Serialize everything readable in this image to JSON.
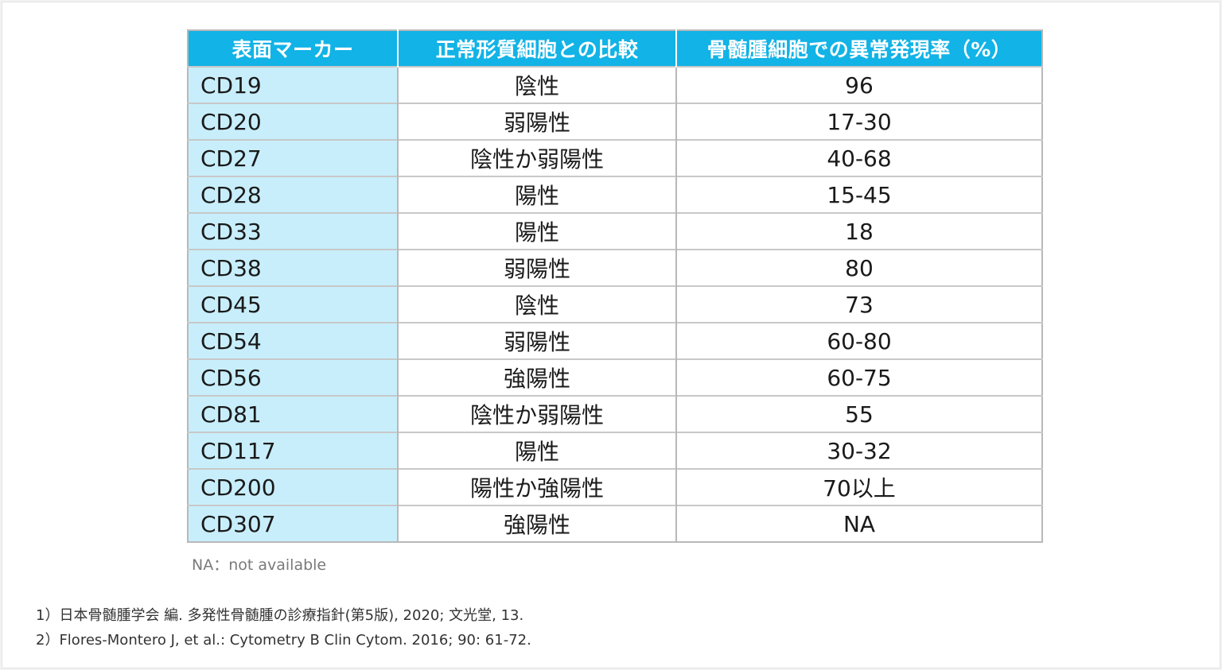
{
  "table": {
    "headers": [
      "表面マーカー",
      "正常形質細胞との比較",
      "骨髄腫細胞での異常発現率（%）"
    ],
    "rows": [
      {
        "marker": "CD19",
        "normal": "陰性",
        "rate": "96"
      },
      {
        "marker": "CD20",
        "normal": "弱陽性",
        "rate": "17-30"
      },
      {
        "marker": "CD27",
        "normal": "陰性か弱陽性",
        "rate": "40-68"
      },
      {
        "marker": "CD28",
        "normal": "陽性",
        "rate": "15-45"
      },
      {
        "marker": "CD33",
        "normal": "陽性",
        "rate": "18"
      },
      {
        "marker": "CD38",
        "normal": "弱陽性",
        "rate": "80"
      },
      {
        "marker": "CD45",
        "normal": "陰性",
        "rate": "73"
      },
      {
        "marker": "CD54",
        "normal": "弱陽性",
        "rate": "60-80"
      },
      {
        "marker": "CD56",
        "normal": "強陽性",
        "rate": "60-75"
      },
      {
        "marker": "CD81",
        "normal": "陰性か弱陽性",
        "rate": "55"
      },
      {
        "marker": "CD117",
        "normal": "陽性",
        "rate": "30-32"
      },
      {
        "marker": "CD200",
        "normal": "陽性か強陽性",
        "rate": "70以上"
      },
      {
        "marker": "CD307",
        "normal": "強陽性",
        "rate": "NA"
      }
    ],
    "header_color": "#12b3e6",
    "marker_column_color": "#c8eefb"
  },
  "note": "NA：not available",
  "references": [
    "1）日本骨髄腫学会 編. 多発性骨髄腫の診療指針(第5版), 2020; 文光堂, 13.",
    "2）Flores-Montero J, et al.: Cytometry B Clin Cytom. 2016; 90: 61-72."
  ]
}
